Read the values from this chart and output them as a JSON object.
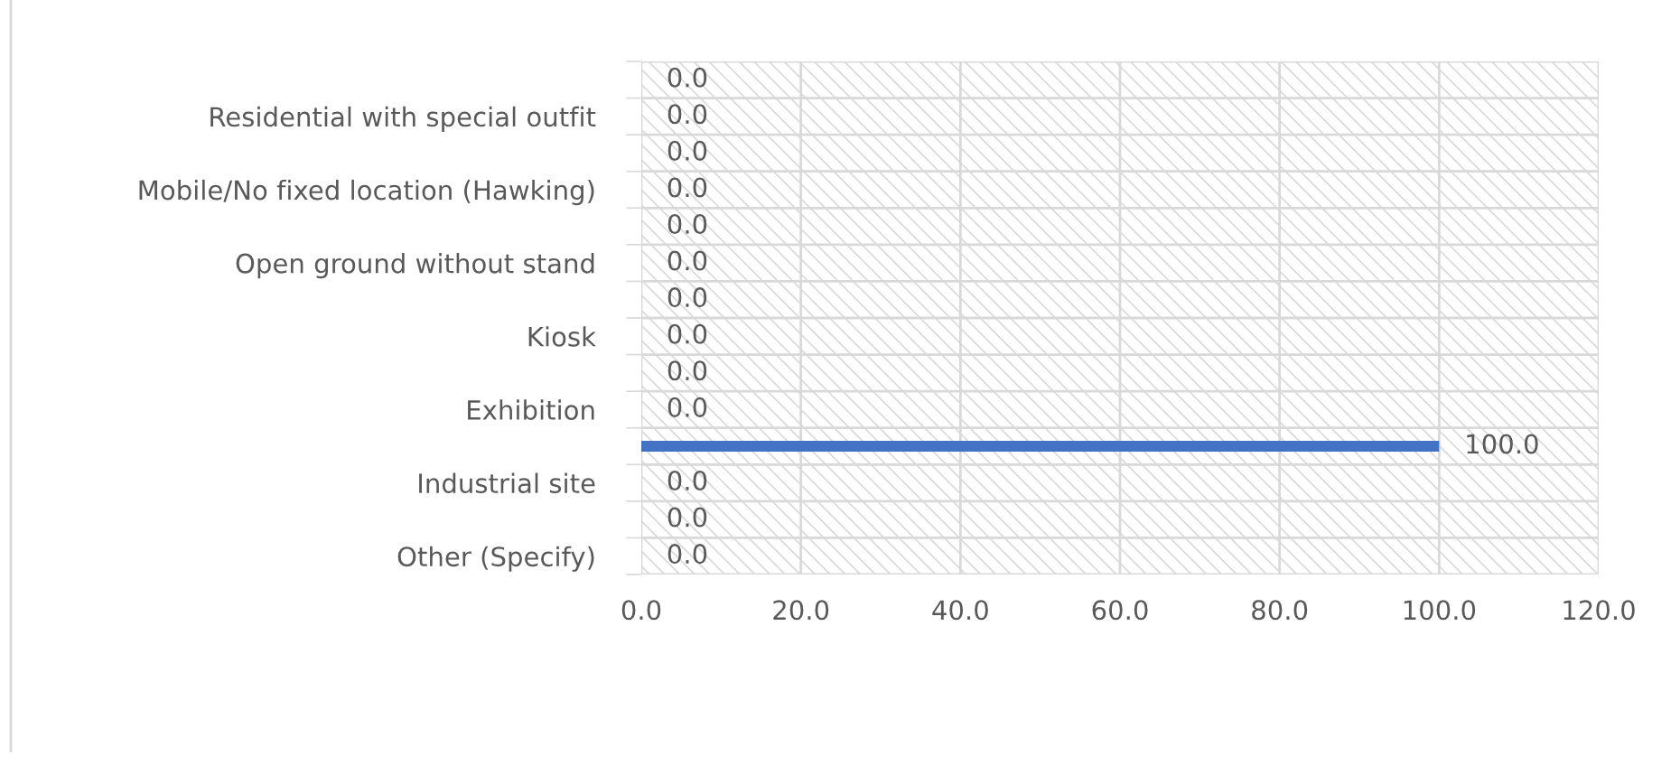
{
  "chart_data": {
    "type": "bar",
    "orientation": "horizontal",
    "categories": [
      null,
      "Residential with special outfit",
      null,
      "Mobile/No fixed location (Hawking)",
      null,
      "Open ground without stand",
      null,
      "Kiosk",
      null,
      "Exhibition",
      null,
      "Industrial site",
      null,
      "Other (Specify)"
    ],
    "values": [
      0,
      0,
      0,
      0,
      0,
      0,
      0,
      0,
      0,
      0,
      100,
      0,
      0,
      0
    ],
    "value_labels": [
      "0.0",
      "0.0",
      "0.0",
      "0.0",
      "0.0",
      "0.0",
      "0.0",
      "0.0",
      "0.0",
      "0.0",
      "100.0",
      "0.0",
      "0.0",
      "0.0"
    ],
    "color": "#4472c4",
    "xlim": [
      0,
      120
    ],
    "xticks": [
      {
        "value": 0,
        "label": "0.0"
      },
      {
        "value": 20,
        "label": "20.0"
      },
      {
        "value": 40,
        "label": "40.0"
      },
      {
        "value": 60,
        "label": "60.0"
      },
      {
        "value": 80,
        "label": "80.0"
      },
      {
        "value": 100,
        "label": "100.0"
      },
      {
        "value": 120,
        "label": "120.0"
      }
    ],
    "grid": true
  }
}
